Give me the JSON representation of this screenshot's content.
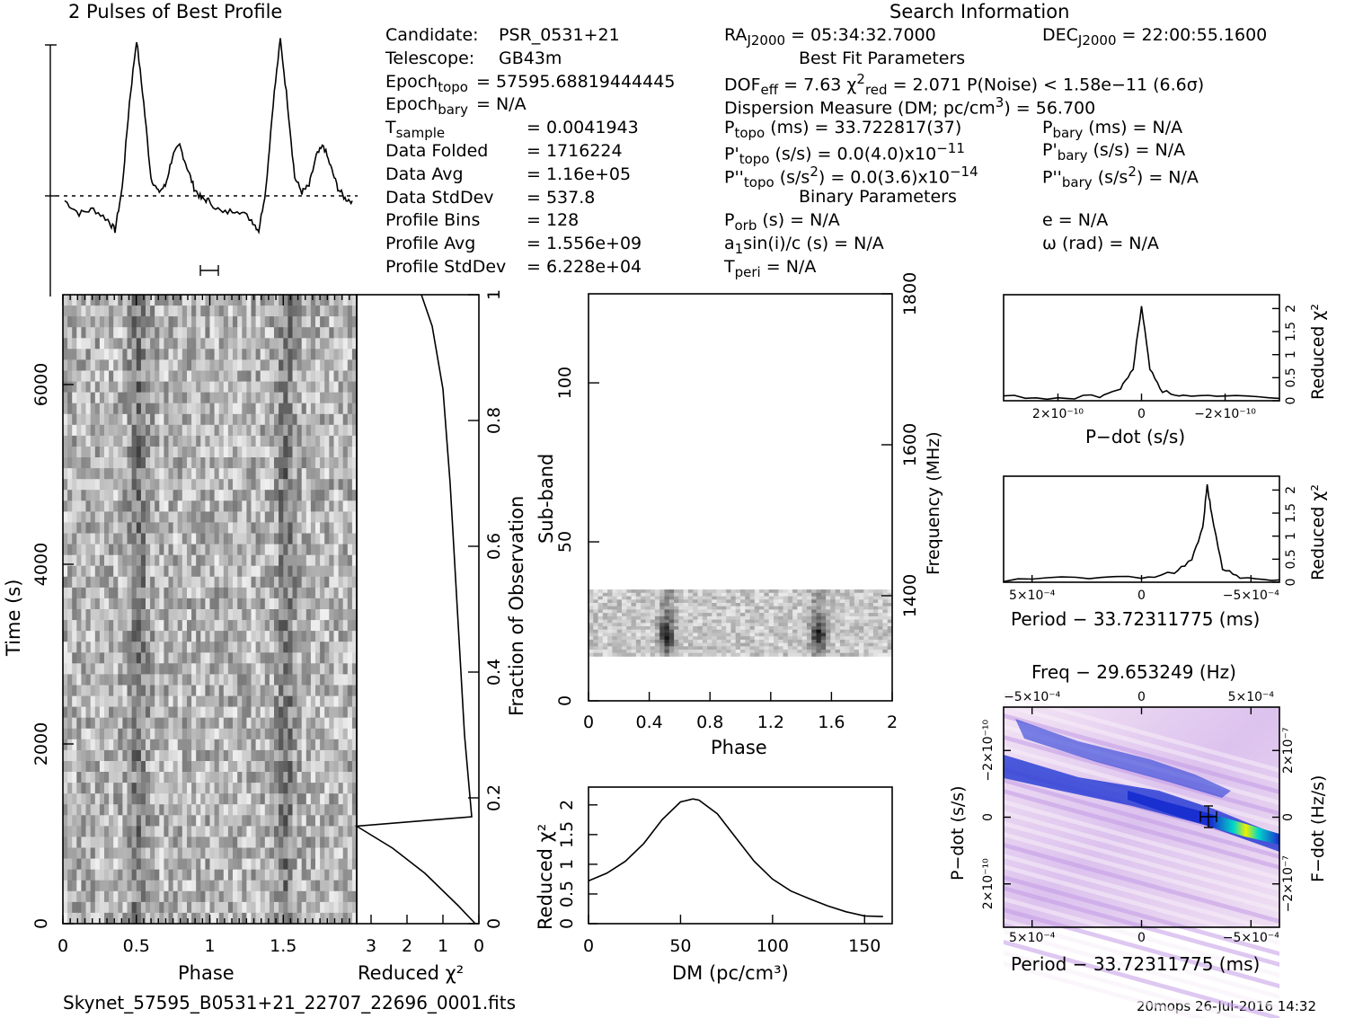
{
  "left_title": "2 Pulses of Best Profile",
  "right_title": "Search Information",
  "footer": {
    "filename": "Skynet_57595_B0531+21_22707_22696_0001.fits",
    "stamp": "20mops 26-Jul-2016 14:32"
  },
  "candidate_info": [
    {
      "label": "Candidate:",
      "value": "PSR_0531+21"
    },
    {
      "label": "Telescope:",
      "value": "GB43m"
    },
    {
      "label": "Epoch",
      "sub": "topo",
      "value": "= 57595.68819444445"
    },
    {
      "label": "Epoch",
      "sub": "bary",
      "value": "= N/A"
    },
    {
      "label": "T",
      "sub": "sample",
      "value": "=    0.0041943"
    },
    {
      "label": "Data Folded",
      "value": "=    1716224"
    },
    {
      "label": "Data Avg",
      "value": "=    1.16e+05"
    },
    {
      "label": "Data StdDev",
      "value": "=    537.8"
    },
    {
      "label": "Profile Bins",
      "value": "=    128"
    },
    {
      "label": "Profile Avg",
      "value": "=    1.556e+09"
    },
    {
      "label": "Profile StdDev",
      "value": "=    6.228e+04"
    }
  ],
  "search_info": {
    "ra": {
      "pre": "RA",
      "sub": "J2000",
      "post": " = 05:34:32.7000"
    },
    "dec": {
      "pre": "DEC",
      "sub": "J2000",
      "post": " = 22:00:55.1600"
    },
    "best_fit_header": "Best Fit Parameters",
    "dof_line": {
      "a": "DOF",
      "a_sub": "eff",
      "b": " = 7.63   χ",
      "b_sup": "2",
      "b_sub": "red",
      "c": " = 2.071   P(Noise) < 1.58e−11   (6.6σ)"
    },
    "dm_line": {
      "a": "Dispersion Measure (DM; pc/cm",
      "sup": "3",
      "b": ") = 56.700"
    },
    "ptopo": {
      "a": "P",
      "sub": "topo",
      "b": " (ms) =  33.722817(37)"
    },
    "pbary": {
      "a": "P",
      "sub": "bary",
      "b": " (ms) = N/A"
    },
    "pdtopo": {
      "a": "P'",
      "sub": "topo",
      "b": " (s/s) = 0.0(4.0)x10",
      "sup": "−11"
    },
    "pdbary": {
      "a": "P'",
      "sub": "bary",
      "b": " (s/s) = N/A"
    },
    "pddtopo": {
      "a": "P''",
      "sub": "topo",
      "b": " (s/s",
      "sup1": "2",
      "c": ") = 0.0(3.6)x10",
      "sup2": "−14"
    },
    "pddbary": {
      "a": "P''",
      "sub": "bary",
      "b": " (s/s",
      "sup1": "2",
      "c": ") = N/A"
    },
    "binary_header": "Binary Parameters",
    "porb": {
      "a": "P",
      "sub": "orb",
      "b": " (s) = N/A"
    },
    "ecc": "e = N/A",
    "a1": {
      "a": "a",
      "sub": "1",
      "b": "sin(i)/c (s) = N/A"
    },
    "omega": "ω (rad) = N/A",
    "tperi": {
      "a": "T",
      "sub": "peri",
      "b": " = N/A"
    }
  },
  "chart_data": [
    {
      "type": "line",
      "title": "2 Pulses of Best Profile",
      "xlabel": "",
      "ylabel": "",
      "xlim": [
        0,
        2
      ],
      "x": [
        0.0,
        0.1,
        0.2,
        0.3,
        0.35,
        0.4,
        0.45,
        0.5,
        0.55,
        0.6,
        0.65,
        0.7,
        0.75,
        0.8,
        0.85,
        0.9,
        0.95,
        1.0,
        1.1,
        1.2,
        1.3,
        1.35,
        1.4,
        1.45,
        1.5,
        1.55,
        1.6,
        1.65,
        1.7,
        1.75,
        1.8,
        1.85,
        1.9,
        1.95,
        2.0
      ],
      "y": [
        0.24,
        0.18,
        0.2,
        0.15,
        0.1,
        0.3,
        0.7,
        1.0,
        0.7,
        0.35,
        0.28,
        0.31,
        0.45,
        0.5,
        0.4,
        0.3,
        0.25,
        0.24,
        0.18,
        0.2,
        0.15,
        0.1,
        0.3,
        0.7,
        1.0,
        0.7,
        0.35,
        0.28,
        0.31,
        0.45,
        0.5,
        0.4,
        0.3,
        0.25,
        0.24
      ]
    },
    {
      "type": "heatmap",
      "xlabel": "Phase",
      "ylabel": "Time (s)",
      "xlim": [
        0,
        2
      ],
      "ylim": [
        0,
        7000
      ],
      "x_ticks": [
        "0",
        "0.5",
        "1",
        "1.5"
      ],
      "y_ticks": [
        "0",
        "2000",
        "4000",
        "6000"
      ]
    },
    {
      "type": "line",
      "xlabel": "Reduced χ²",
      "ylabel": "Fraction of Observation",
      "xlim": [
        3.4,
        0
      ],
      "ylim": [
        0,
        1
      ],
      "x_ticks": [
        "3",
        "2",
        "1",
        "0"
      ],
      "y_ticks": [
        "0",
        "0.2",
        "0.4",
        "0.6",
        "0.8",
        "1"
      ],
      "x": [
        0.1,
        0.6,
        1.5,
        2.4,
        3.4,
        0.2,
        0.4,
        0.6,
        0.8,
        1.0,
        1.3,
        1.6
      ],
      "y": [
        0.0,
        0.03,
        0.08,
        0.12,
        0.155,
        0.17,
        0.3,
        0.5,
        0.7,
        0.85,
        0.95,
        1.0
      ]
    },
    {
      "type": "heatmap",
      "xlabel": "Phase",
      "ylabel": "Sub-band",
      "y2label": "Frequency (MHz)",
      "xlim": [
        0,
        2
      ],
      "ylim": [
        0,
        128
      ],
      "x_ticks": [
        "0",
        "0.4",
        "0.8",
        "1.2",
        "1.6",
        "2"
      ],
      "y_ticks": [
        "0",
        "50",
        "100"
      ],
      "y2_ticks": [
        "1400",
        "1600",
        "1800"
      ]
    },
    {
      "type": "line",
      "xlabel": "DM (pc/cm³)",
      "ylabel": "Reduced χ²",
      "xlim": [
        0,
        165
      ],
      "ylim": [
        0,
        2.3
      ],
      "x_ticks": [
        "0",
        "50",
        "100",
        "150"
      ],
      "y_ticks": [
        "0",
        "0.5",
        "1",
        "1.5",
        "2"
      ],
      "x": [
        0,
        10,
        20,
        30,
        40,
        50,
        56.7,
        60,
        70,
        80,
        90,
        100,
        110,
        120,
        130,
        140,
        150,
        160
      ],
      "y": [
        0.72,
        0.85,
        1.05,
        1.35,
        1.75,
        2.05,
        2.1,
        2.08,
        1.85,
        1.45,
        1.05,
        0.75,
        0.55,
        0.42,
        0.3,
        0.2,
        0.13,
        0.12
      ]
    },
    {
      "type": "line",
      "xlabel": "P−dot (s/s)",
      "ylabel": "Reduced χ²",
      "xlim": [
        3.3e-10,
        -3.3e-10
      ],
      "ylim": [
        0,
        2.3
      ],
      "x_ticks": [
        "2×10⁻¹⁰",
        "0",
        "−2×10⁻¹⁰"
      ],
      "y_ticks": [
        "0",
        "0.5",
        "1",
        "1.5",
        "2"
      ],
      "x": [
        3.3e-10,
        2e-10,
        1e-10,
        5e-11,
        2e-11,
        0,
        -2e-11,
        -5e-11,
        -1e-10,
        -2e-10,
        -3.3e-10
      ],
      "y": [
        0.1,
        0.05,
        0.1,
        0.25,
        0.7,
        2.05,
        0.7,
        0.2,
        0.1,
        0.08,
        0.05
      ]
    },
    {
      "type": "line",
      "xlabel": "Period − 33.72311775 (ms)",
      "ylabel": "Reduced χ²",
      "xlim": [
        0.00063,
        -0.00063
      ],
      "ylim": [
        0,
        2.3
      ],
      "x_ticks": [
        "5×10⁻⁴",
        "0",
        "−5×10⁻⁴"
      ],
      "y_ticks": [
        "0",
        "0.5",
        "1",
        "1.5",
        "2"
      ],
      "x": [
        0.00063,
        0.0003,
        0,
        -0.00015,
        -0.00023,
        -0.00028,
        -0.0003,
        -0.00032,
        -0.00037,
        -0.00045,
        -0.00063
      ],
      "y": [
        0.05,
        0.1,
        0.1,
        0.2,
        0.5,
        1.2,
        2.1,
        1.5,
        0.3,
        0.1,
        0.05
      ]
    },
    {
      "type": "heatmap",
      "title": "Freq − 29.653249 (Hz)",
      "xlabel": "Period − 33.72311775 (ms)",
      "ylabel": "P−dot (s/s)",
      "y2label": "F−dot (Hz/s)",
      "x_ticks": [
        "5×10⁻⁴",
        "0",
        "−5×10⁻⁴"
      ],
      "x2_ticks": [
        "−5×10⁻⁴",
        "0",
        "5×10⁻⁴"
      ],
      "y_ticks": [
        "−2×10⁻¹⁰",
        "0",
        "2×10⁻¹⁰"
      ],
      "y2_ticks": [
        "2×10⁻⁷",
        "0",
        "−2×10⁻⁷"
      ],
      "colors": [
        "#f6eaf6",
        "#c79fe6",
        "#2233cc",
        "#00e0c0",
        "#e6e800"
      ]
    }
  ]
}
